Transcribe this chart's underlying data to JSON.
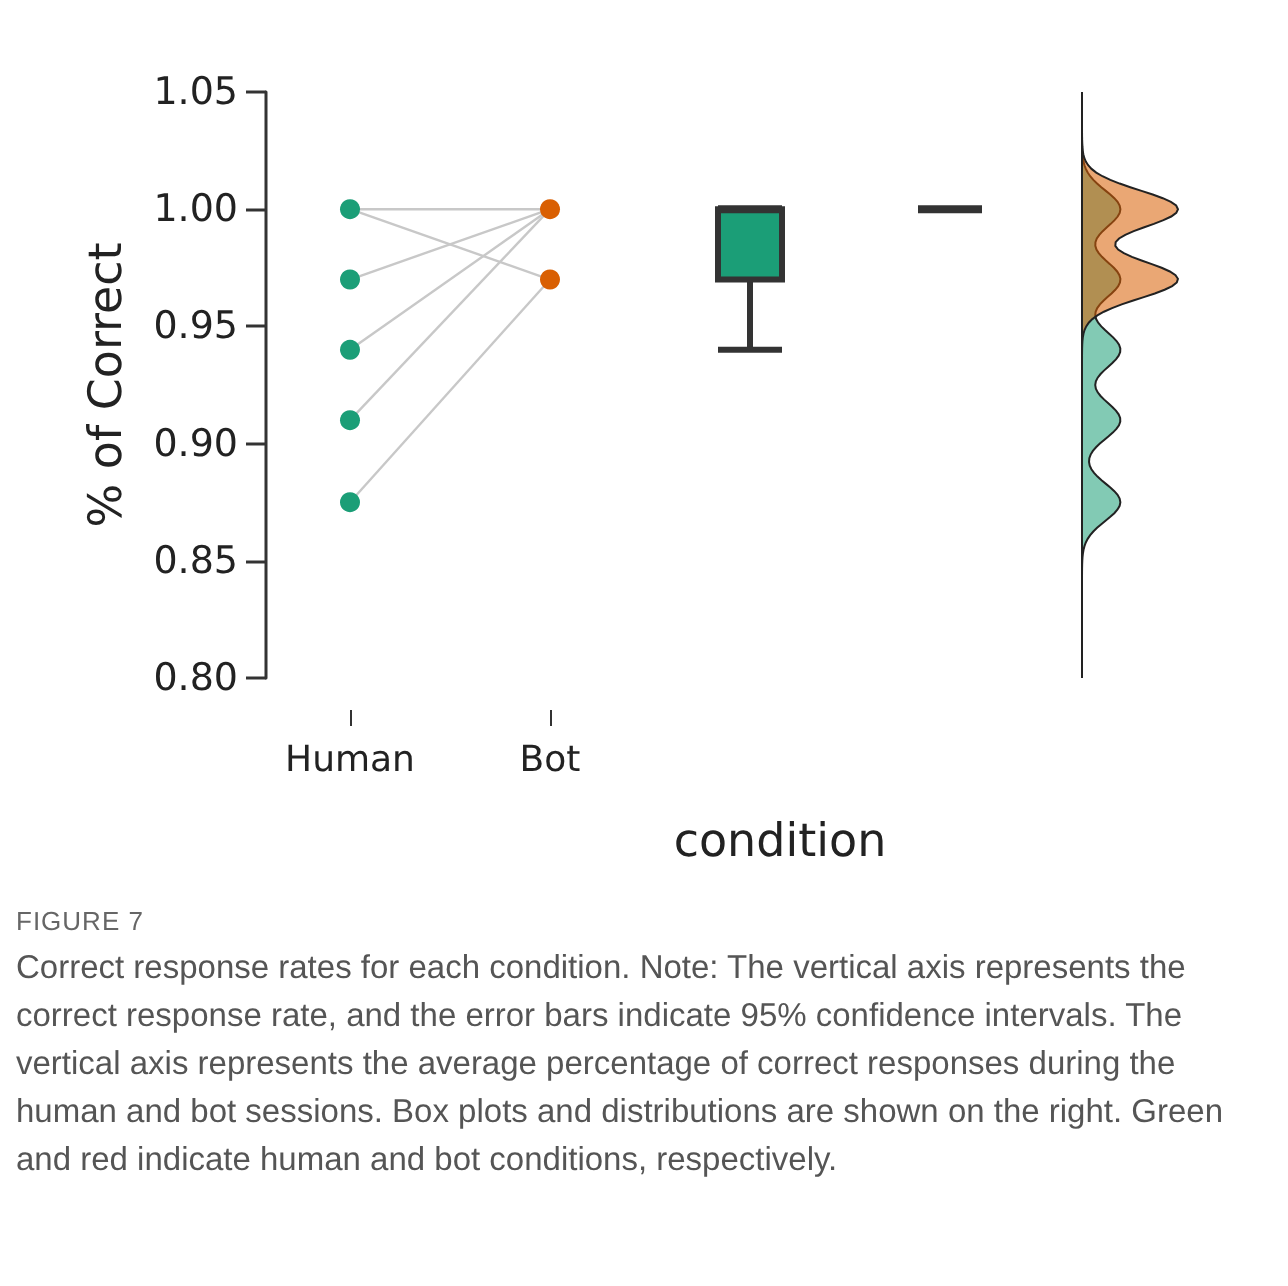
{
  "chart_data": {
    "type": "scatter",
    "xlabel": "condition",
    "ylabel": "% of Correct",
    "categories": [
      "Human",
      "Bot",
      null,
      null
    ],
    "ylim": [
      0.8,
      1.05
    ],
    "yticks": [
      {
        "value": 0.8,
        "label": "0.80"
      },
      {
        "value": 0.85,
        "label": "0.85"
      },
      {
        "value": 0.9,
        "label": "0.90"
      },
      {
        "value": 0.95,
        "label": "0.95"
      },
      {
        "value": 1.0,
        "label": "1.00"
      },
      {
        "value": 1.05,
        "label": "1.05"
      }
    ],
    "marker": "circle",
    "series": [
      {
        "type": "line",
        "marker": "none",
        "color": "#c8c8c8",
        "x": [
          "Human",
          "Bot"
        ],
        "values": [
          1.0,
          1.0
        ]
      },
      {
        "type": "line",
        "marker": "none",
        "color": "#c8c8c8",
        "x": [
          "Human",
          "Bot"
        ],
        "values": [
          1.0,
          0.97
        ]
      },
      {
        "type": "line",
        "marker": "none",
        "color": "#c8c8c8",
        "x": [
          "Human",
          "Bot"
        ],
        "values": [
          0.97,
          1.0
        ]
      },
      {
        "type": "line",
        "marker": "none",
        "color": "#c8c8c8",
        "x": [
          "Human",
          "Bot"
        ],
        "values": [
          0.94,
          1.0
        ]
      },
      {
        "type": "line",
        "marker": "none",
        "color": "#c8c8c8",
        "x": [
          "Human",
          "Bot"
        ],
        "values": [
          0.91,
          1.0
        ]
      },
      {
        "type": "line",
        "marker": "none",
        "color": "#c8c8c8",
        "x": [
          "Human",
          "Bot"
        ],
        "values": [
          0.875,
          0.97
        ]
      },
      {
        "color": "#1b9e77",
        "x": [
          "Human",
          "Human",
          "Human",
          "Human",
          "Human"
        ],
        "values": [
          1.0,
          0.97,
          0.94,
          0.91,
          0.875
        ]
      },
      {
        "color": "#d95f02",
        "x": [
          "Bot",
          "Bot"
        ],
        "values": [
          1.0,
          0.97
        ]
      },
      {
        "type": "box",
        "color": "#1b9e77",
        "boxes": [
          null,
          null,
          {
            "low": 0.94,
            "q1": 0.97,
            "median": 1.0,
            "q3": 1.0,
            "high": 1.0
          },
          null
        ]
      },
      {
        "type": "box",
        "color": "#333333",
        "boxes": [
          null,
          null,
          null,
          {
            "low": 1.0,
            "q1": 1.0,
            "median": 1.0,
            "q3": 1.0,
            "high": 1.0
          }
        ]
      }
    ],
    "annotations": [
      "FIGURE 7",
      "Correct response rates for each condition. Note: The vertical axis represents the correct response rate, and the error bars indicate 95% confidence intervals. The vertical axis represents the average percentage of correct responses during the human and bot sessions. Box plots and distributions are shown on the right. Green and red indicate human and bot conditions, respectively."
    ]
  }
}
